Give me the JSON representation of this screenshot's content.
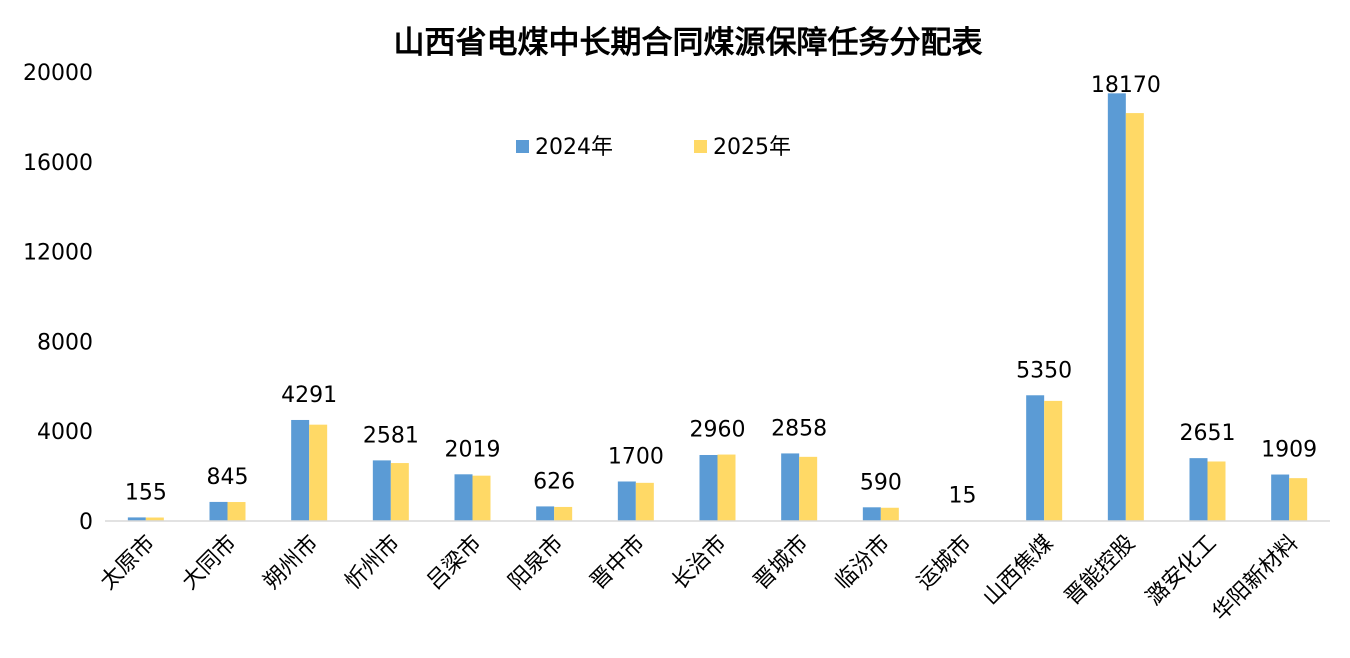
{
  "chart_data": {
    "type": "bar",
    "title": "山西省电煤中长期合同煤源保障任务分配表",
    "xlabel": "",
    "ylabel": "",
    "ylim": [
      0,
      20000
    ],
    "yticks": [
      0,
      4000,
      8000,
      12000,
      16000,
      20000
    ],
    "grid": false,
    "legend_position": "top-center",
    "categories": [
      "太原市",
      "大同市",
      "朔州市",
      "忻州市",
      "吕梁市",
      "阳泉市",
      "晋中市",
      "长治市",
      "晋城市",
      "临汾市",
      "运城市",
      "山西焦煤",
      "晋能控股",
      "潞安化工",
      "华阳新材料"
    ],
    "series": [
      {
        "name": "2024年",
        "color": "#5b9bd5",
        "values": [
          160,
          850,
          4500,
          2700,
          2080,
          650,
          1760,
          2940,
          3010,
          610,
          15,
          5600,
          19050,
          2800,
          2070
        ]
      },
      {
        "name": "2025年",
        "color": "#ffd966",
        "values": [
          155,
          845,
          4291,
          2581,
          2019,
          626,
          1700,
          2960,
          2858,
          590,
          15,
          5350,
          18170,
          2651,
          1909
        ]
      }
    ],
    "data_labels": [
      "155",
      "845",
      "4291",
      "2581",
      "2019",
      "626",
      "1700",
      "2960",
      "2858",
      "590",
      "15",
      "5350",
      "18170",
      "2651",
      "1909"
    ]
  }
}
